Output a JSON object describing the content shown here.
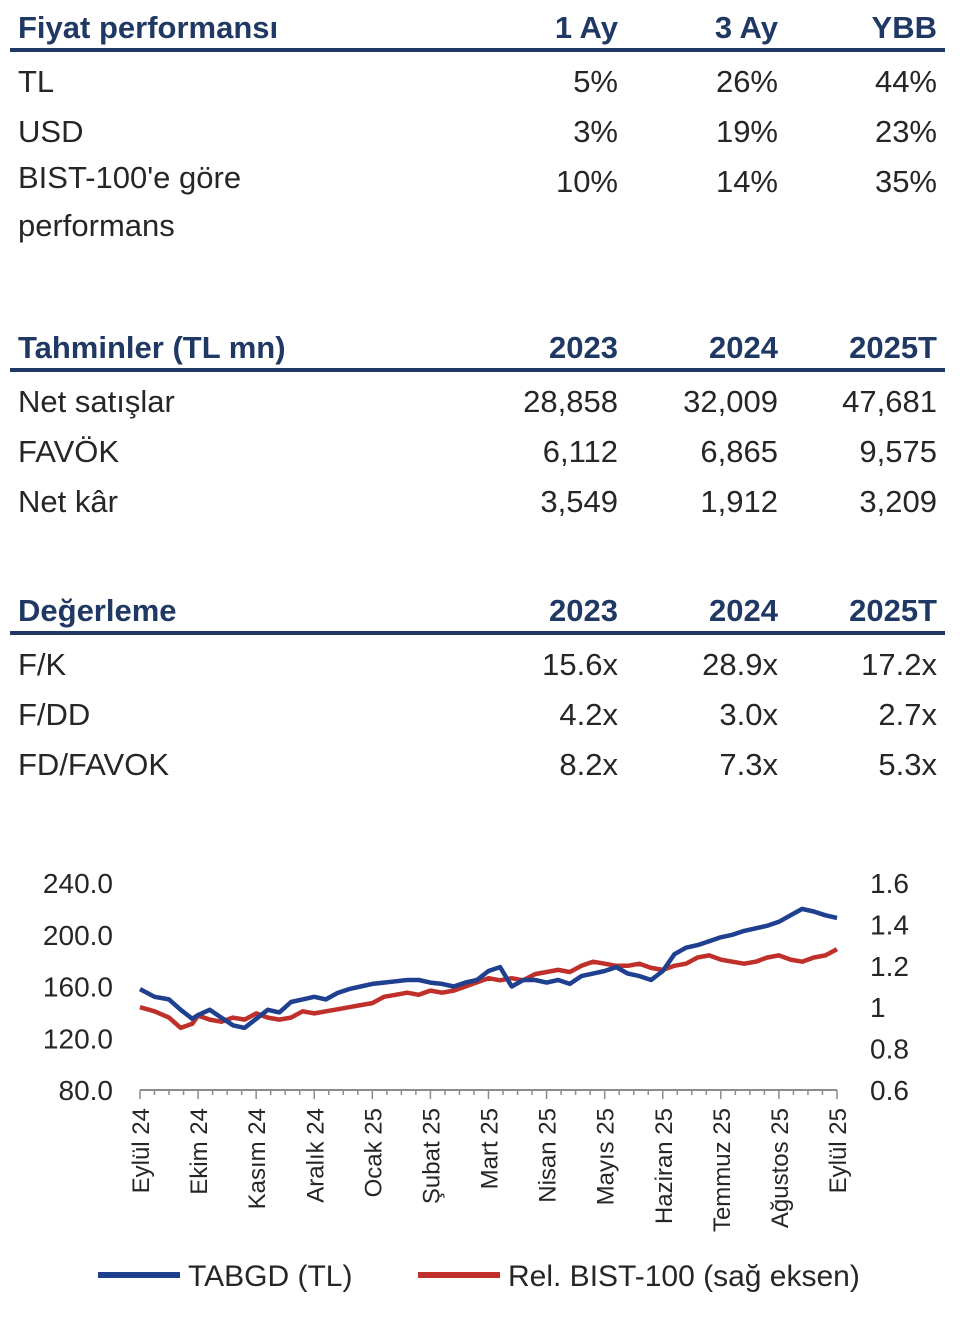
{
  "performance": {
    "title": "Fiyat performansı",
    "columns": [
      "1 Ay",
      "3 Ay",
      "YBB"
    ],
    "rows": [
      {
        "label": "TL",
        "values": [
          "5%",
          "26%",
          "44%"
        ]
      },
      {
        "label": "USD",
        "values": [
          "3%",
          "19%",
          "23%"
        ]
      },
      {
        "label": "BIST-100'e göre performans",
        "values": [
          "10%",
          "14%",
          "35%"
        ]
      }
    ]
  },
  "estimates": {
    "title": "Tahminler (TL mn)",
    "columns": [
      "2023",
      "2024",
      "2025T"
    ],
    "rows": [
      {
        "label": "Net satışlar",
        "values": [
          "28,858",
          "32,009",
          "47,681"
        ]
      },
      {
        "label": "FAVÖK",
        "values": [
          "6,112",
          "6,865",
          "9,575"
        ]
      },
      {
        "label": "Net kâr",
        "values": [
          "3,549",
          "1,912",
          "3,209"
        ]
      }
    ]
  },
  "valuation": {
    "title": "Değerleme",
    "columns": [
      "2023",
      "2024",
      "2025T"
    ],
    "rows": [
      {
        "label": "F/K",
        "values": [
          "15.6x",
          "28.9x",
          "17.2x"
        ]
      },
      {
        "label": "F/DD",
        "values": [
          "4.2x",
          "3.0x",
          "2.7x"
        ]
      },
      {
        "label": "FD/FAVOK",
        "values": [
          "8.2x",
          "7.3x",
          "5.3x"
        ]
      }
    ]
  },
  "chart_data": {
    "type": "line",
    "categories": [
      "Eylül 24",
      "Ekim 24",
      "Kasım 24",
      "Aralık 24",
      "Ocak 25",
      "Şubat 25",
      "Mart 25",
      "Nisan 25",
      "Mayıs 25",
      "Haziran 25",
      "Temmuz 25",
      "Ağustos 25",
      "Eylül 25"
    ],
    "y_left": {
      "ticks": [
        "240.0",
        "200.0",
        "160.0",
        "120.0",
        "80.0"
      ],
      "range": [
        80,
        240
      ]
    },
    "y_right": {
      "ticks": [
        "1.6",
        "1.4",
        "1.2",
        "1",
        "0.8",
        "0.6"
      ],
      "range": [
        0.6,
        1.6
      ]
    },
    "series": [
      {
        "name": "TABGD (TL)",
        "axis": "left",
        "color": "#1f3f8f",
        "x": [
          0,
          0.25,
          0.5,
          0.7,
          0.9,
          1.0,
          1.2,
          1.4,
          1.6,
          1.8,
          2.0,
          2.2,
          2.4,
          2.6,
          2.8,
          3.0,
          3.2,
          3.4,
          3.6,
          3.8,
          4.0,
          4.2,
          4.4,
          4.6,
          4.8,
          5.0,
          5.2,
          5.4,
          5.6,
          5.8,
          6.0,
          6.2,
          6.4,
          6.6,
          6.8,
          7.0,
          7.2,
          7.4,
          7.6,
          7.8,
          8.0,
          8.2,
          8.4,
          8.6,
          8.8,
          9.0,
          9.2,
          9.4,
          9.6,
          9.8,
          10.0,
          10.2,
          10.4,
          10.6,
          10.8,
          11.0,
          11.2,
          11.4,
          11.6,
          11.8,
          12.0
        ],
        "values": [
          158,
          152,
          150,
          142,
          135,
          138,
          142,
          136,
          130,
          128,
          135,
          142,
          140,
          148,
          150,
          152,
          150,
          155,
          158,
          160,
          162,
          163,
          164,
          165,
          165,
          163,
          162,
          160,
          163,
          165,
          172,
          175,
          160,
          165,
          165,
          163,
          165,
          162,
          168,
          170,
          172,
          175,
          170,
          168,
          165,
          172,
          185,
          190,
          192,
          195,
          198,
          200,
          203,
          205,
          207,
          210,
          215,
          220,
          218,
          215,
          213
        ]
      },
      {
        "name": "Rel. BIST-100 (sağ eksen)",
        "axis": "right",
        "color": "#c0302b",
        "x": [
          0,
          0.25,
          0.5,
          0.7,
          0.9,
          1.0,
          1.2,
          1.4,
          1.6,
          1.8,
          2.0,
          2.2,
          2.4,
          2.6,
          2.8,
          3.0,
          3.2,
          3.4,
          3.6,
          3.8,
          4.0,
          4.2,
          4.4,
          4.6,
          4.8,
          5.0,
          5.2,
          5.4,
          5.6,
          5.8,
          6.0,
          6.2,
          6.4,
          6.6,
          6.8,
          7.0,
          7.2,
          7.4,
          7.6,
          7.8,
          8.0,
          8.2,
          8.4,
          8.6,
          8.8,
          9.0,
          9.2,
          9.4,
          9.6,
          9.8,
          10.0,
          10.2,
          10.4,
          10.6,
          10.8,
          11.0,
          11.2,
          11.4,
          11.6,
          11.8,
          12.0
        ],
        "values": [
          1.0,
          0.98,
          0.95,
          0.9,
          0.92,
          0.96,
          0.94,
          0.93,
          0.95,
          0.94,
          0.97,
          0.95,
          0.94,
          0.95,
          0.98,
          0.97,
          0.98,
          0.99,
          1.0,
          1.01,
          1.02,
          1.05,
          1.06,
          1.07,
          1.06,
          1.08,
          1.07,
          1.08,
          1.1,
          1.12,
          1.14,
          1.13,
          1.14,
          1.13,
          1.16,
          1.17,
          1.18,
          1.17,
          1.2,
          1.22,
          1.21,
          1.2,
          1.2,
          1.21,
          1.19,
          1.18,
          1.2,
          1.21,
          1.24,
          1.25,
          1.23,
          1.22,
          1.21,
          1.22,
          1.24,
          1.25,
          1.23,
          1.22,
          1.24,
          1.25,
          1.28
        ]
      }
    ]
  }
}
